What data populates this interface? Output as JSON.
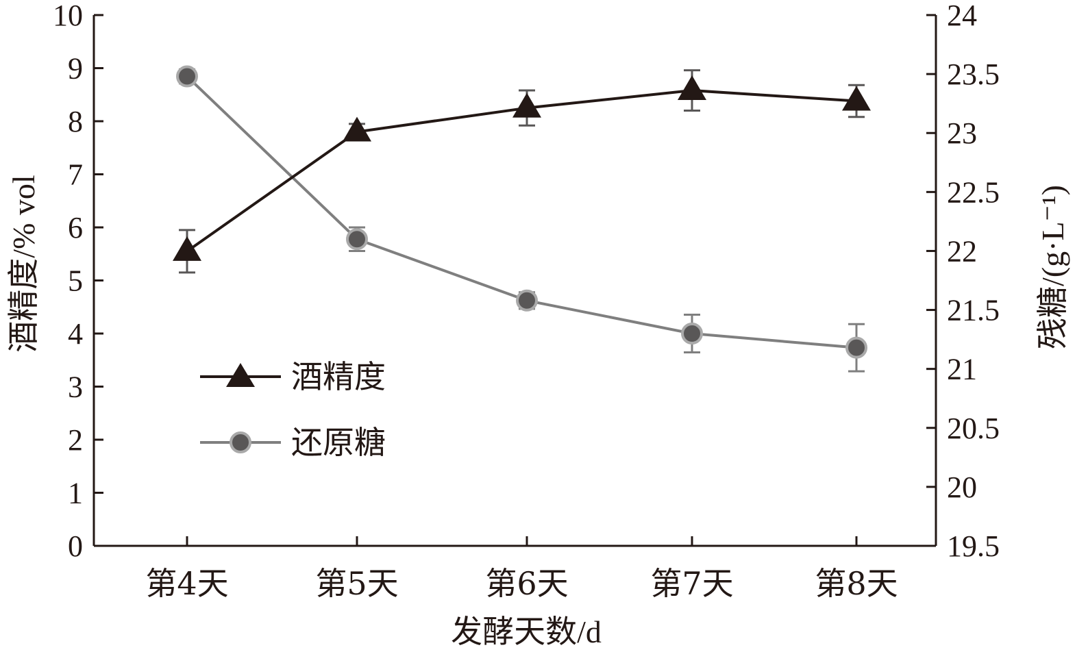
{
  "chart_data": {
    "type": "line",
    "title": "",
    "categories": [
      "第4天",
      "第5天",
      "第6天",
      "第7天",
      "第8天"
    ],
    "xlabel": "发酵天数/d",
    "ylabel_left": "酒精度/% vol",
    "ylabel_right": "残糖/(g·L⁻¹)",
    "ylim_left": [
      0,
      10
    ],
    "ylim_right": [
      19.5,
      24
    ],
    "yticks_left": [
      "0",
      "1",
      "2",
      "3",
      "4",
      "5",
      "6",
      "7",
      "8",
      "9",
      "10"
    ],
    "yticks_right": [
      "19.5",
      "20",
      "20.5",
      "21",
      "21.5",
      "22",
      "22.5",
      "23",
      "23.5",
      "24"
    ],
    "grid": false,
    "legend_position": "lower-left",
    "series": [
      {
        "name": "酒精度",
        "axis": "left",
        "marker": "triangle",
        "color": "#231815",
        "values": [
          5.55,
          7.8,
          8.25,
          8.58,
          8.38
        ],
        "errors": [
          0.4,
          0.15,
          0.33,
          0.38,
          0.3
        ]
      },
      {
        "name": "还原糖",
        "axis": "right",
        "marker": "circle",
        "color": "#7f7f7f",
        "values": [
          23.48,
          22.1,
          21.58,
          21.3,
          21.18
        ],
        "errors": [
          0.06,
          0.1,
          0.07,
          0.16,
          0.2
        ]
      }
    ]
  }
}
